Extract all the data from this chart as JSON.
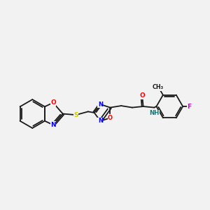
{
  "background_color": "#f2f2f2",
  "bond_color": "#1a1a1a",
  "atom_colors": {
    "O": "#ff0000",
    "N": "#0000ee",
    "S": "#cccc00",
    "F": "#cc00cc",
    "H": "#008080",
    "C": "#1a1a1a"
  },
  "figsize": [
    3.0,
    3.0
  ],
  "dpi": 100
}
